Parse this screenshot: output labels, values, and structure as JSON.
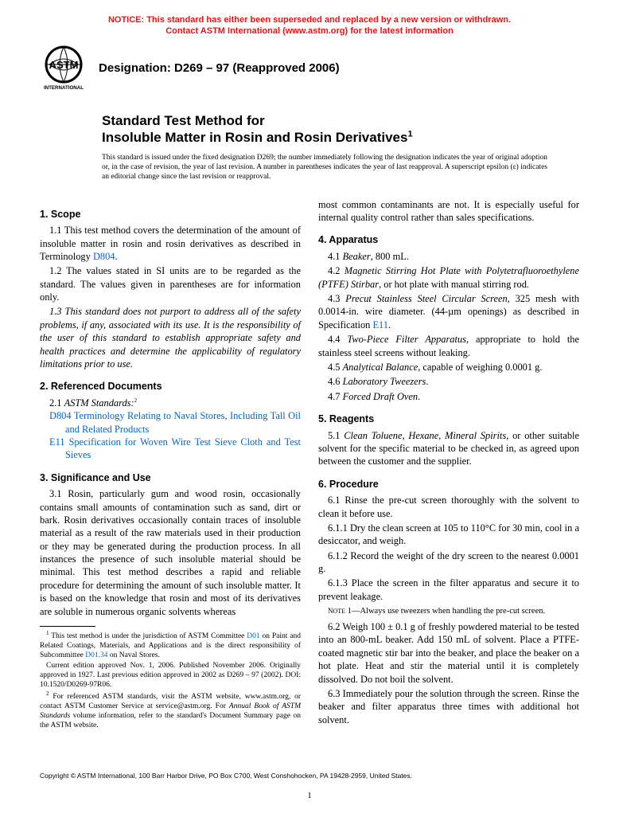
{
  "notice": {
    "line1": "NOTICE: This standard has either been superseded and replaced by a new version or withdrawn.",
    "line2": "Contact ASTM International (www.astm.org) for the latest information"
  },
  "logo": {
    "top_text": "ASTM",
    "bottom_text": "INTERNATIONAL"
  },
  "designation": "Designation: D269 – 97 (Reapproved 2006)",
  "title": {
    "line1": "Standard Test Method for",
    "line2_pre": "Insoluble Matter in Rosin and Rosin Derivatives",
    "sup": "1"
  },
  "issuance": "This standard is issued under the fixed designation D269; the number immediately following the designation indicates the year of original adoption or, in the case of revision, the year of last revision. A number in parentheses indicates the year of last reapproval. A superscript epsilon (ε) indicates an editorial change since the last revision or reapproval.",
  "left": {
    "s1": {
      "head": "1. Scope",
      "p1_a": "1.1 This test method covers the determination of the amount of insoluble matter in rosin and rosin derivatives as described in Terminology ",
      "p1_link": "D804",
      "p1_b": ".",
      "p2": "1.2 The values stated in SI units are to be regarded as the standard. The values given in parentheses are for information only.",
      "p3": "1.3 This standard does not purport to address all of the safety problems, if any, associated with its use. It is the responsibility of the user of this standard to establish appropriate safety and health practices and determine the applicability of regulatory limitations prior to use."
    },
    "s2": {
      "head": "2. Referenced Documents",
      "sub_a": "2.1 ",
      "sub_i": "ASTM Standards:",
      "sub_sup": "2",
      "r1_code": "D804",
      "r1_text": "  Terminology Relating to Naval Stores, Including Tall Oil and Related Products",
      "r2_code": "E11",
      "r2_text": "  Specification for Woven Wire Test Sieve Cloth and Test Sieves"
    },
    "s3": {
      "head": "3. Significance and Use",
      "p1": "3.1 Rosin, particularly gum and wood rosin, occasionally contains small amounts of contamination such as sand, dirt or bark. Rosin derivatives occasionally contain traces of insoluble material as a result of the raw materials used in their production or they may be generated during the production process. In all instances the presence of such insoluble material should be minimal. This test method describes a rapid and reliable procedure for determining the amount of such insoluble matter. It is based on the knowledge that rosin and most of its derivatives are soluble in numerous organic solvents whereas"
    },
    "fn1_a": " This test method is under the jurisdiction of ASTM Committee ",
    "fn1_link1": "D01",
    "fn1_b": " on Paint and Related Coatings, Materials, and Applications and is the direct responsibility of Subcommittee ",
    "fn1_link2": "D01.34",
    "fn1_c": " on Naval Stores.",
    "fn1_p2": "Current edition approved Nov. 1, 2006. Published November 2006. Originally approved in 1927. Last previous edition approved in 2002 as D269 – 97 (2002). DOI: 10.1520/D0269-97R06.",
    "fn2_a": " For referenced ASTM standards, visit the ASTM website, www.astm.org, or contact ASTM Customer Service at service@astm.org. For ",
    "fn2_i": "Annual Book of ASTM Standards",
    "fn2_b": " volume information, refer to the standard's Document Summary page on the ASTM website."
  },
  "right": {
    "cont": "most common contaminants are not. It is especially useful for internal quality control rather than sales specifications.",
    "s4": {
      "head": "4. Apparatus",
      "p1_a": "4.1 ",
      "p1_i": "Beaker",
      "p1_b": ", 800 mL.",
      "p2_a": "4.2 ",
      "p2_i": "Magnetic Stirring Hot Plate with Polytetrafluoroethylene (PTFE) Stirbar",
      "p2_b": ", or hot plate with manual stirring rod.",
      "p3_a": "4.3 ",
      "p3_i": "Precut Stainless Steel Circular Screen",
      "p3_b": ", 325 mesh with 0.0014-in. wire diameter. (44-µm openings) as described in Specification ",
      "p3_link": "E11",
      "p3_c": ".",
      "p4_a": "4.4 ",
      "p4_i": "Two-Piece Filter Apparatus",
      "p4_b": ", appropriate to hold the stainless steel screens without leaking.",
      "p5_a": "4.5 ",
      "p5_i": "Analytical Balance",
      "p5_b": ", capable of weighing 0.0001 g.",
      "p6_a": "4.6 ",
      "p6_i": "Laboratory Tweezers",
      "p6_b": ".",
      "p7_a": "4.7 ",
      "p7_i": "Forced Draft Oven",
      "p7_b": "."
    },
    "s5": {
      "head": "5. Reagents",
      "p1_a": "5.1 ",
      "p1_i": "Clean Toluene, Hexane, Mineral Spirits",
      "p1_b": ", or other suitable solvent for the specific material to be checked in, as agreed upon between the customer and the supplier."
    },
    "s6": {
      "head": "6. Procedure",
      "p1": "6.1 Rinse the pre-cut screen thoroughly with the solvent to clean it before use.",
      "p11": "6.1.1 Dry the clean screen at 105 to 110°C for 30 min, cool in a desiccator, and weigh.",
      "p12": "6.1.2 Record the weight of the dry screen to the nearest 0.0001 g.",
      "p13": "6.1.3 Place the screen in the filter apparatus and secure it to prevent leakage.",
      "note": "NOTE 1—Always use tweezers when handling the pre-cut screen.",
      "p2": "6.2 Weigh 100 ± 0.1 g of freshly powdered material to be tested into an 800-mL beaker. Add 150 mL of solvent. Place a PTFE-coated magnetic stir bar into the beaker, and place the beaker on a hot plate. Heat and stir the material until it is completely dissolved. Do not boil the solvent.",
      "p3": "6.3 Immediately pour the solution through the screen. Rinse the beaker and filter apparatus three times with additional hot solvent."
    }
  },
  "copyright": "Copyright © ASTM International, 100 Barr Harbor Drive, PO Box C700, West Conshohocken, PA 19428-2959, United States.",
  "pagenum": "1"
}
